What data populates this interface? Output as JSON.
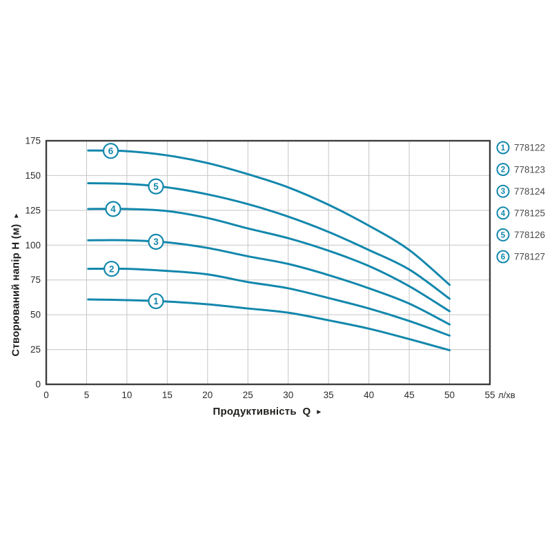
{
  "icons": {
    "axis_arrow": "►"
  },
  "chart_data": {
    "type": "line",
    "title": "",
    "xlabel": "Продуктивність  Q",
    "ylabel": "Створюваний напір H (м)",
    "x_unit": "л/хв",
    "xlim": [
      0,
      55
    ],
    "ylim": [
      0,
      175
    ],
    "x_ticks": [
      0,
      5,
      10,
      15,
      20,
      25,
      30,
      35,
      40,
      45,
      50,
      55
    ],
    "y_ticks": [
      0,
      25,
      50,
      75,
      100,
      125,
      150,
      175
    ],
    "grid": true,
    "legend_position": "right",
    "x": [
      5.2,
      10,
      15,
      20,
      25,
      30,
      35,
      40,
      45,
      50
    ],
    "series": [
      {
        "num": "1",
        "code": "778122",
        "label_at_x": 13.6,
        "values": [
          61,
          60.5,
          59.5,
          57.5,
          54.5,
          51.5,
          46,
          40,
          32.5,
          24.5
        ]
      },
      {
        "num": "2",
        "code": "778123",
        "label_at_x": 8.1,
        "values": [
          83,
          83,
          81.5,
          79,
          73.5,
          69,
          62,
          54.5,
          45.5,
          35
        ]
      },
      {
        "num": "3",
        "code": "778124",
        "label_at_x": 13.6,
        "values": [
          103.5,
          103.5,
          102,
          98,
          92,
          86.5,
          78.5,
          69,
          58,
          43
        ]
      },
      {
        "num": "4",
        "code": "778125",
        "label_at_x": 8.3,
        "values": [
          126,
          126,
          124.5,
          119.5,
          112,
          105,
          96,
          85,
          70.5,
          52.5
        ]
      },
      {
        "num": "5",
        "code": "778126",
        "label_at_x": 13.6,
        "values": [
          144.5,
          144,
          141.5,
          136.5,
          129.5,
          120.5,
          109.5,
          96.5,
          82.5,
          61.5
        ]
      },
      {
        "num": "6",
        "code": "778127",
        "label_at_x": 8.0,
        "values": [
          168,
          167.5,
          164.5,
          159,
          151,
          141.5,
          129,
          114,
          96.5,
          71.5
        ]
      }
    ],
    "colors": {
      "curve": "#1287ac",
      "grid": "#c5c5c5",
      "frame": "#3c3c3b",
      "tick_text": "#2b2b2a",
      "title_text": "#1d1d1b",
      "legend_text": "#4a4a4a",
      "background": "#ffffff"
    }
  }
}
